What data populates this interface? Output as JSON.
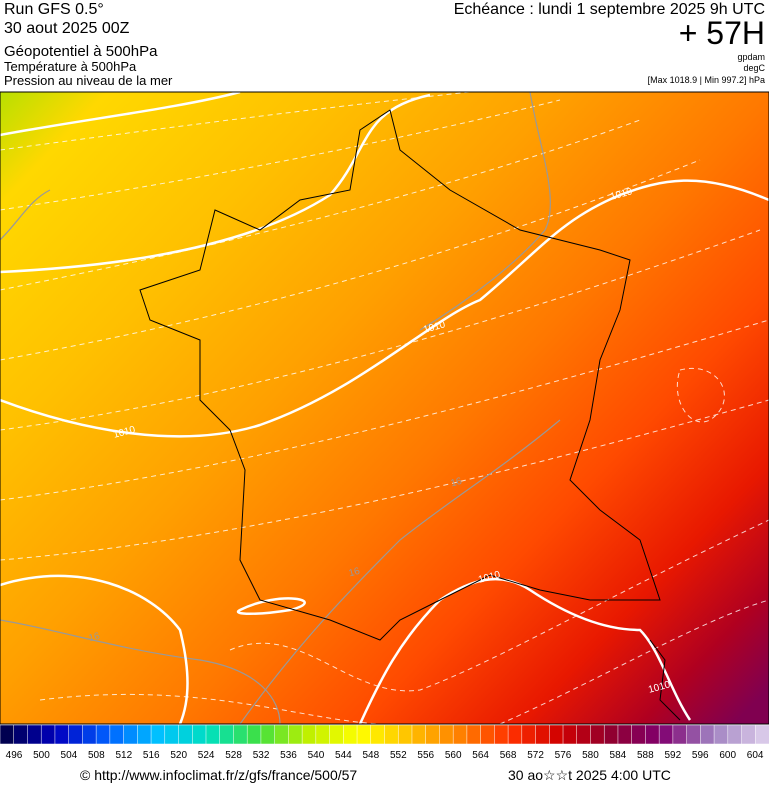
{
  "header": {
    "run": "Run GFS 0.5°",
    "run_date": "30 aout 2025 00Z",
    "line1": "Géopotentiel à 500hPa",
    "line2": "Température à 500hPa",
    "line3": "Pression au niveau de la mer",
    "valid": "Echéance : lundi 1 septembre 2025 9h UTC",
    "lead": "+ 57H",
    "unit1": "gpdam",
    "unit2": "degC",
    "range": "[Max 1018.9 | Min 997.2] hPa"
  },
  "map": {
    "contour_labels": [
      "1010",
      "1010",
      "1010",
      "1010",
      "1010",
      "16",
      "16",
      "16"
    ]
  },
  "legend": {
    "labels": [
      496,
      500,
      504,
      508,
      512,
      516,
      520,
      524,
      528,
      532,
      536,
      540,
      544,
      548,
      552,
      556,
      560,
      564,
      568,
      572,
      576,
      580,
      584,
      588,
      592,
      596,
      600,
      604
    ]
  },
  "footer": {
    "url": "© http://www.infoclimat.fr/z/gfs/france/500/57",
    "time": "30 ao☆☆t 2025  4:00 UTC"
  }
}
